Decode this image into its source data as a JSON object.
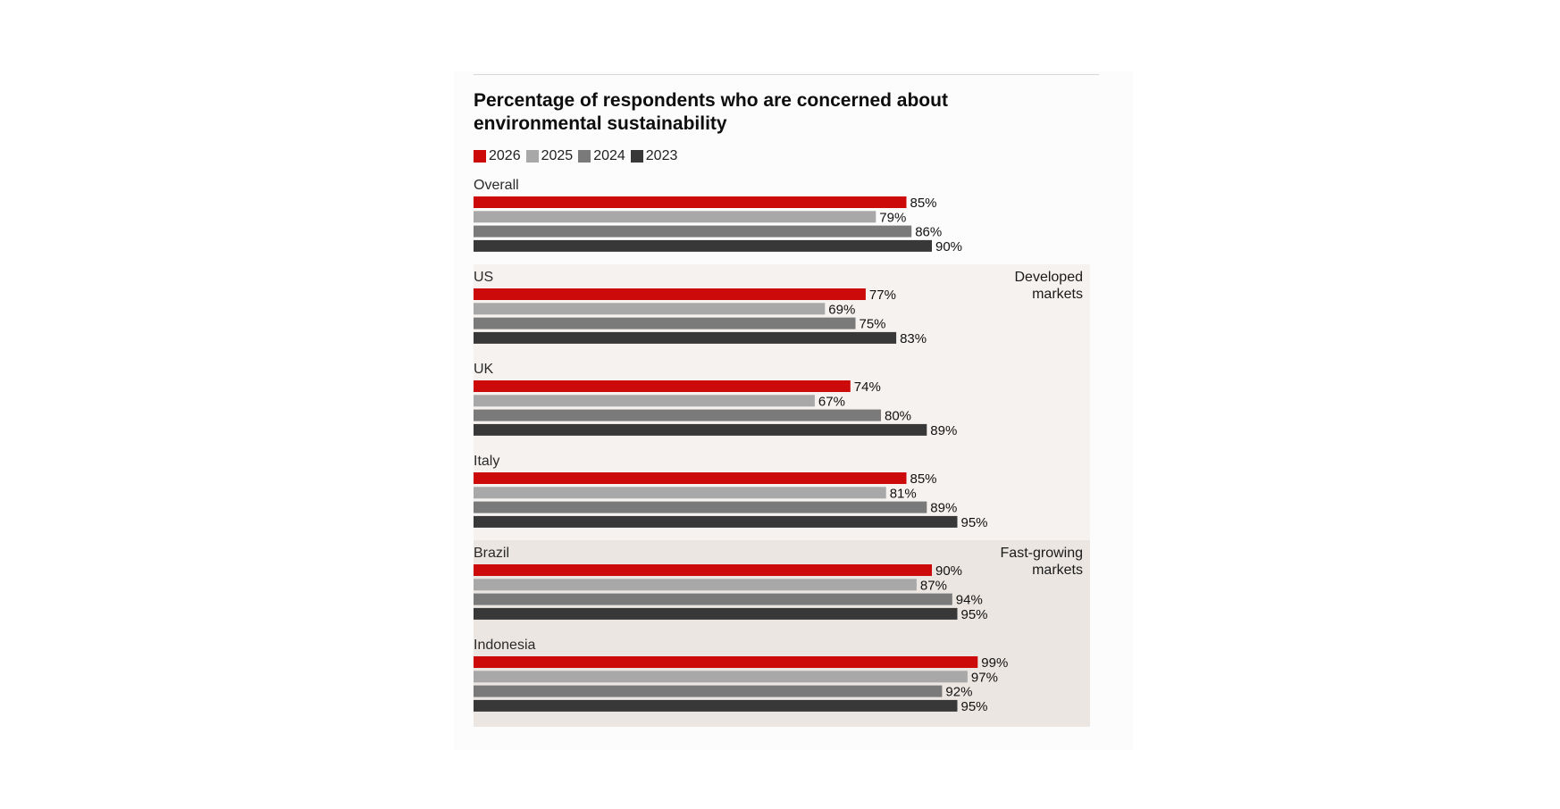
{
  "chart_data": {
    "type": "bar",
    "orientation": "horizontal",
    "title": "Percentage of respondents who are concerned about environmental sustainability",
    "legend_position": "top-left",
    "series": [
      {
        "name": "2026",
        "color": "#cc0a0a",
        "values": [
          85,
          77,
          74,
          85,
          90,
          99
        ]
      },
      {
        "name": "2025",
        "color": "#a8a8a8",
        "values": [
          79,
          69,
          67,
          81,
          87,
          97
        ]
      },
      {
        "name": "2024",
        "color": "#7a7a7a",
        "values": [
          86,
          75,
          80,
          89,
          94,
          92
        ]
      },
      {
        "name": "2023",
        "color": "#383838",
        "values": [
          90,
          83,
          89,
          95,
          95,
          95
        ]
      }
    ],
    "categories": [
      "Overall",
      "US",
      "UK",
      "Italy",
      "Brazil",
      "Indonesia"
    ],
    "value_suffix": "%",
    "xlim": [
      0,
      100
    ],
    "grid": false,
    "sections": [
      {
        "label_lines": [
          "Developed",
          "markets"
        ],
        "categories": [
          "US",
          "UK",
          "Italy"
        ],
        "background": "#f6f2f0"
      },
      {
        "label_lines": [
          "Fast-growing",
          "markets"
        ],
        "categories": [
          "Brazil",
          "Indonesia"
        ],
        "background": "#ece6e2"
      }
    ]
  }
}
